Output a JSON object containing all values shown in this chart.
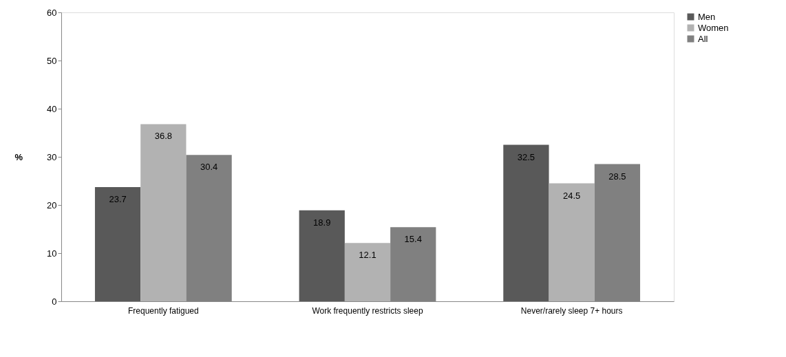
{
  "chart_data": {
    "type": "bar",
    "ylabel": "%",
    "categories": [
      "Frequently fatigued",
      "Work frequently restricts sleep",
      "Never/rarely sleep 7+ hours"
    ],
    "series": [
      {
        "name": "Men",
        "color": "#595959",
        "values": [
          23.7,
          18.9,
          32.5
        ]
      },
      {
        "name": "Women",
        "color": "#b2b2b2",
        "values": [
          36.8,
          12.1,
          24.5
        ]
      },
      {
        "name": "All",
        "color": "#808080",
        "values": [
          30.4,
          15.4,
          28.5
        ]
      }
    ],
    "ylim": [
      0,
      60
    ],
    "yticks": [
      0,
      10,
      20,
      30,
      40,
      50,
      60
    ],
    "grid": false,
    "legend": "right",
    "data_labels": true
  }
}
